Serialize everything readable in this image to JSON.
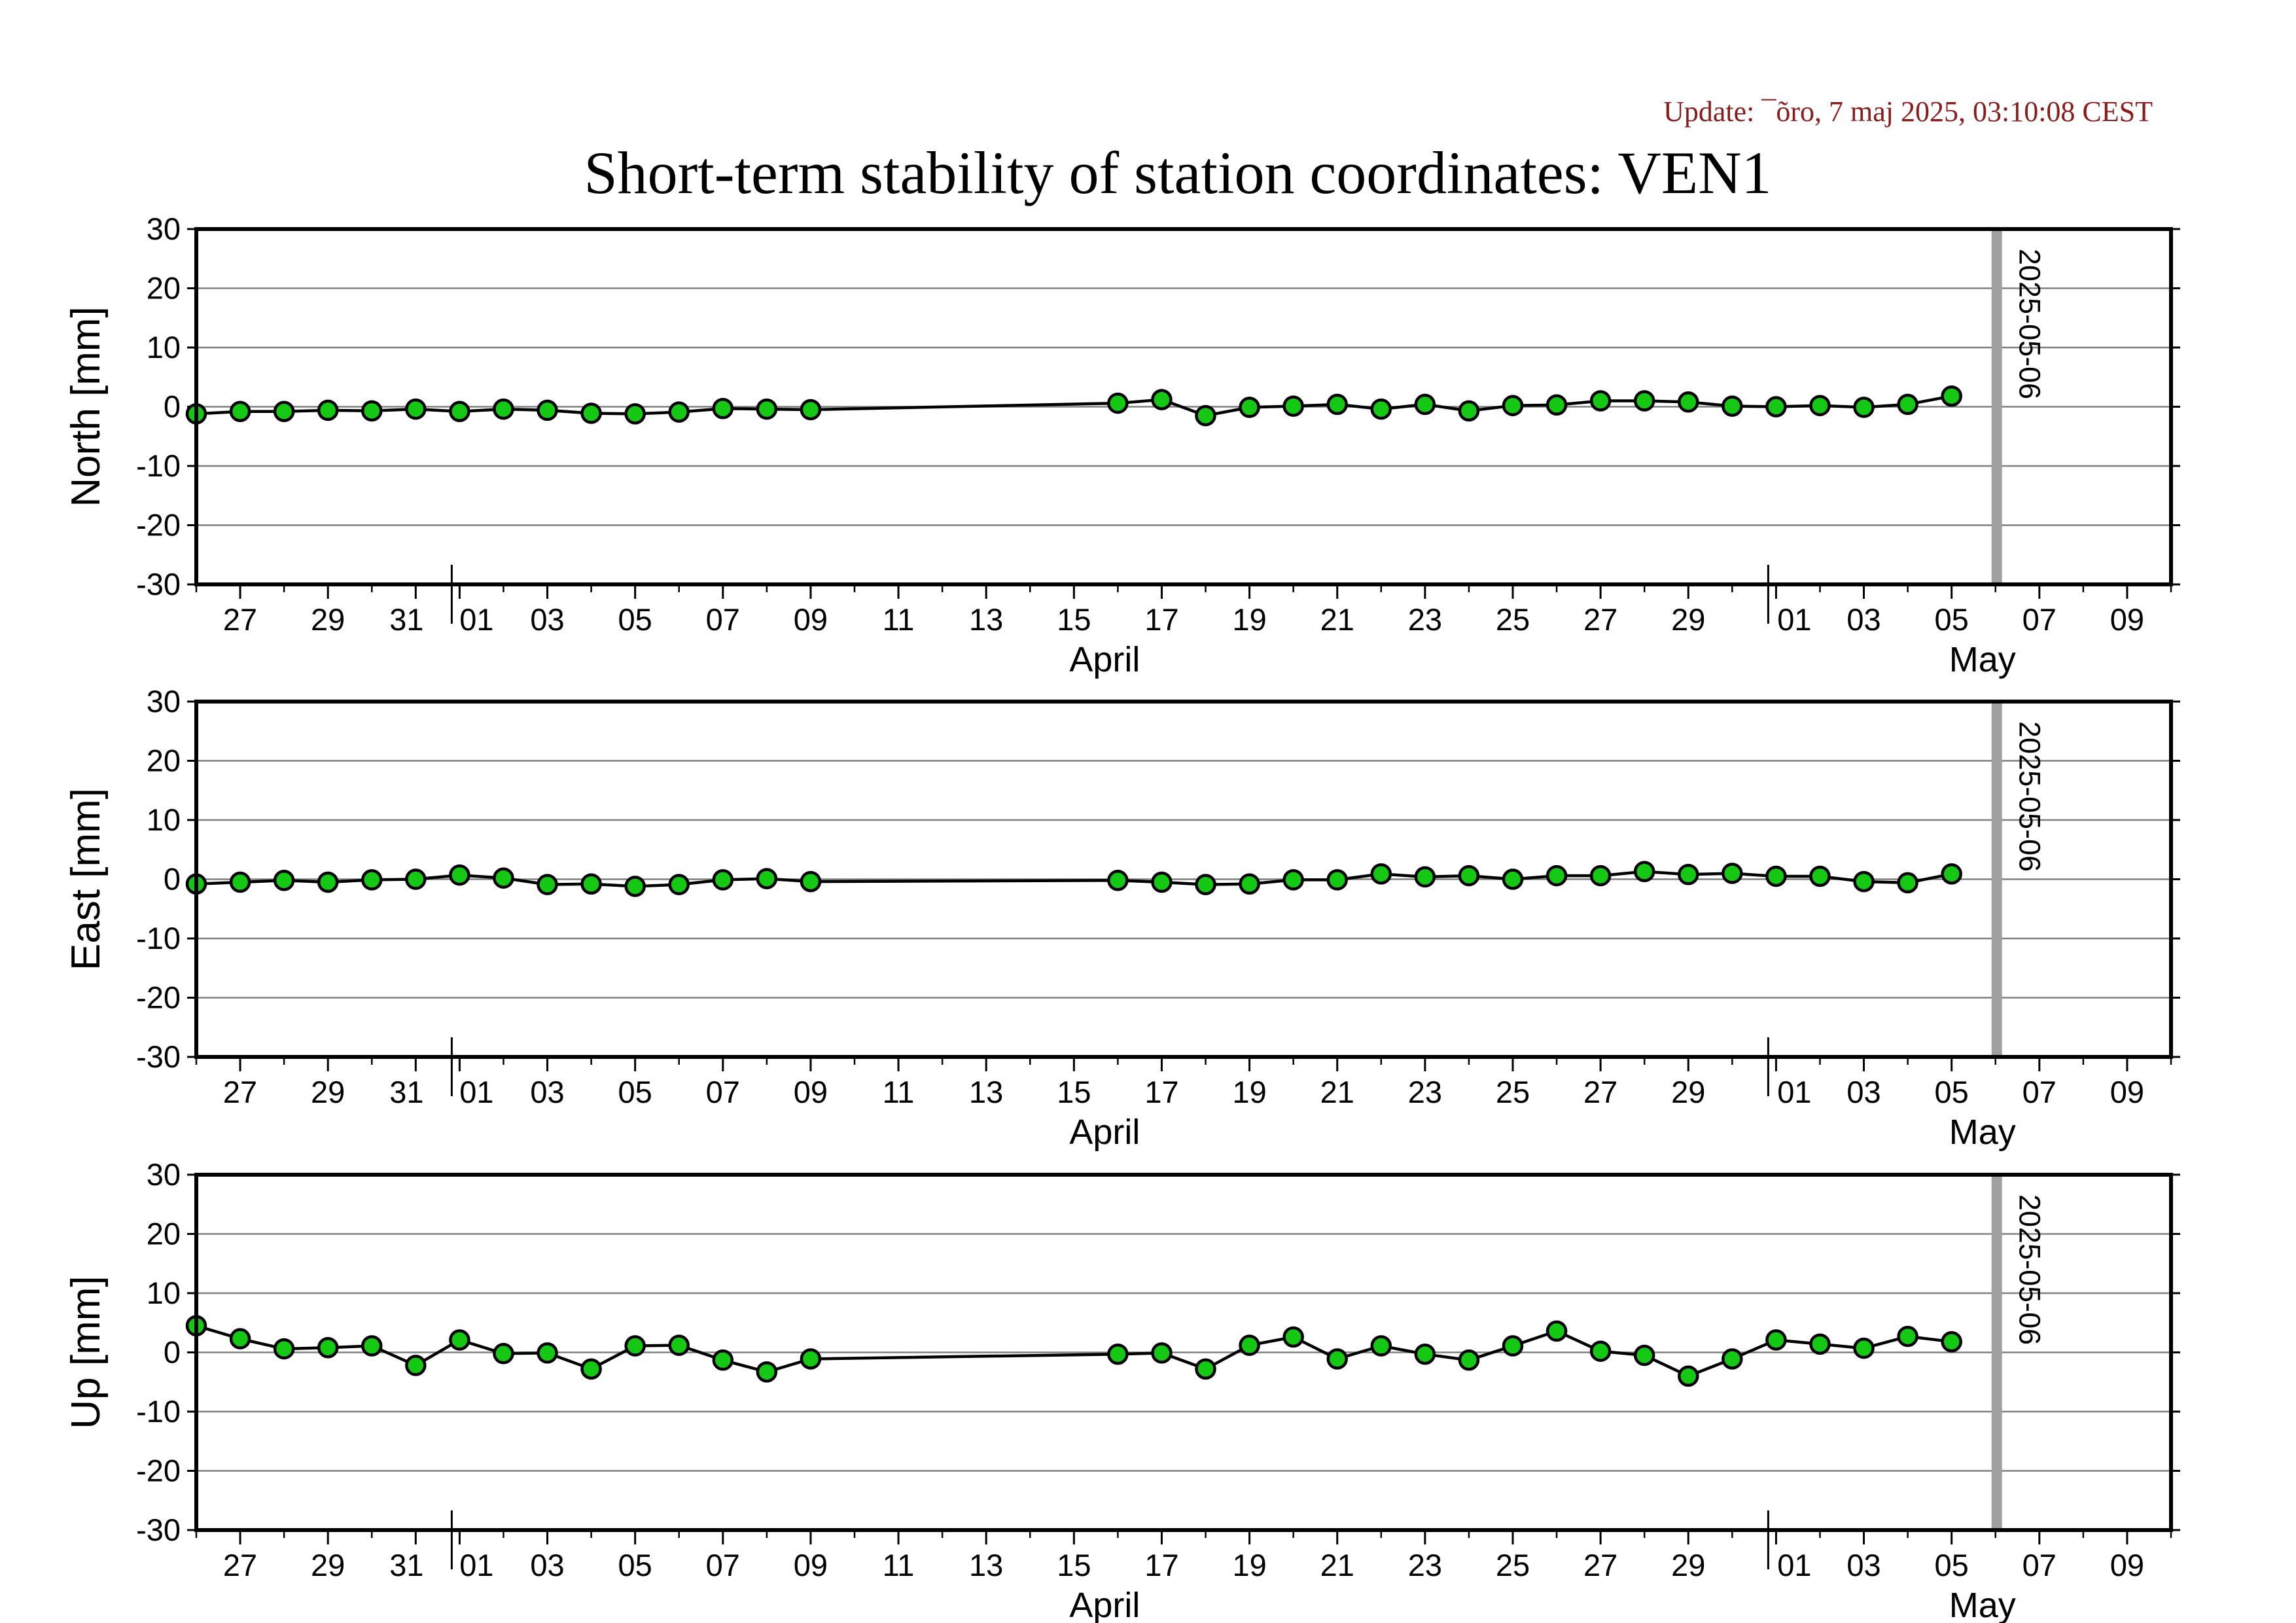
{
  "update_text": "Update: ¯õro, 7 maj 2025, 03:10:08 CEST",
  "title": "Short-term stability of station coordinates: VEN1",
  "colors": {
    "point_fill": "#14c814",
    "point_stroke": "#000000",
    "line": "#000000",
    "grid": "#808080",
    "marker": "#a0a0a0",
    "update": "#8b1a1a"
  },
  "chart_data": [
    {
      "type": "line",
      "ylabel": "North [mm]",
      "ylim": [
        -30,
        30
      ],
      "yticks": [
        30,
        20,
        10,
        0,
        -10,
        -20,
        -30
      ],
      "grid": true,
      "xlim": [
        "2025-03-26",
        "2025-05-10"
      ],
      "x_tick_labels": [
        "27",
        "29",
        "31",
        "01",
        "03",
        "05",
        "07",
        "09",
        "11",
        "13",
        "15",
        "17",
        "19",
        "21",
        "23",
        "25",
        "27",
        "29",
        "01",
        "03",
        "05",
        "07",
        "09"
      ],
      "months": [
        "April",
        "May"
      ],
      "marker": {
        "date": "2025-05-06",
        "label": "2025-05-06"
      },
      "series": [
        {
          "x": [
            "2025-03-26",
            "2025-03-27",
            "2025-03-28",
            "2025-03-29",
            "2025-03-30",
            "2025-03-31",
            "2025-04-01",
            "2025-04-02",
            "2025-04-03",
            "2025-04-04",
            "2025-04-05",
            "2025-04-06",
            "2025-04-07",
            "2025-04-08",
            "2025-04-09",
            "2025-04-16",
            "2025-04-17",
            "2025-04-18",
            "2025-04-19",
            "2025-04-20",
            "2025-04-21",
            "2025-04-22",
            "2025-04-23",
            "2025-04-24",
            "2025-04-25",
            "2025-04-26",
            "2025-04-27",
            "2025-04-28",
            "2025-04-29",
            "2025-04-30",
            "2025-05-01",
            "2025-05-02",
            "2025-05-03",
            "2025-05-04",
            "2025-05-05"
          ],
          "values": [
            -1.2,
            -0.8,
            -0.8,
            -0.6,
            -0.7,
            -0.4,
            -0.8,
            -0.4,
            -0.6,
            -1.1,
            -1.2,
            -0.9,
            -0.3,
            -0.4,
            -0.5,
            0.6,
            1.2,
            -1.5,
            -0.1,
            0.1,
            0.4,
            -0.4,
            0.4,
            -0.7,
            0.2,
            0.3,
            1.0,
            1.0,
            0.8,
            0.1,
            0.0,
            0.2,
            -0.1,
            0.4,
            1.8
          ]
        }
      ]
    },
    {
      "type": "line",
      "ylabel": "East [mm]",
      "ylim": [
        -30,
        30
      ],
      "yticks": [
        30,
        20,
        10,
        0,
        -10,
        -20,
        -30
      ],
      "grid": true,
      "xlim": [
        "2025-03-26",
        "2025-05-10"
      ],
      "x_tick_labels": [
        "27",
        "29",
        "31",
        "01",
        "03",
        "05",
        "07",
        "09",
        "11",
        "13",
        "15",
        "17",
        "19",
        "21",
        "23",
        "25",
        "27",
        "29",
        "01",
        "03",
        "05",
        "07",
        "09"
      ],
      "months": [
        "April",
        "May"
      ],
      "marker": {
        "date": "2025-05-06",
        "label": "2025-05-06"
      },
      "series": [
        {
          "x": [
            "2025-03-26",
            "2025-03-27",
            "2025-03-28",
            "2025-03-29",
            "2025-03-30",
            "2025-03-31",
            "2025-04-01",
            "2025-04-02",
            "2025-04-03",
            "2025-04-04",
            "2025-04-05",
            "2025-04-06",
            "2025-04-07",
            "2025-04-08",
            "2025-04-09",
            "2025-04-16",
            "2025-04-17",
            "2025-04-18",
            "2025-04-19",
            "2025-04-20",
            "2025-04-21",
            "2025-04-22",
            "2025-04-23",
            "2025-04-24",
            "2025-04-25",
            "2025-04-26",
            "2025-04-27",
            "2025-04-28",
            "2025-04-29",
            "2025-04-30",
            "2025-05-01",
            "2025-05-02",
            "2025-05-03",
            "2025-05-04",
            "2025-05-05"
          ],
          "values": [
            -0.8,
            -0.5,
            -0.2,
            -0.5,
            -0.1,
            0.0,
            0.7,
            0.2,
            -0.9,
            -0.8,
            -1.2,
            -0.9,
            -0.1,
            0.1,
            -0.4,
            -0.2,
            -0.5,
            -0.9,
            -0.8,
            -0.1,
            -0.1,
            0.9,
            0.4,
            0.6,
            0.0,
            0.6,
            0.6,
            1.3,
            0.8,
            1.0,
            0.5,
            0.5,
            -0.4,
            -0.6,
            0.9
          ]
        }
      ]
    },
    {
      "type": "line",
      "ylabel": "Up [mm]",
      "ylim": [
        -30,
        30
      ],
      "yticks": [
        30,
        20,
        10,
        0,
        -10,
        -20,
        -30
      ],
      "grid": true,
      "xlim": [
        "2025-03-26",
        "2025-05-10"
      ],
      "x_tick_labels": [
        "27",
        "29",
        "31",
        "01",
        "03",
        "05",
        "07",
        "09",
        "11",
        "13",
        "15",
        "17",
        "19",
        "21",
        "23",
        "25",
        "27",
        "29",
        "01",
        "03",
        "05",
        "07",
        "09"
      ],
      "months": [
        "April",
        "May"
      ],
      "marker": {
        "date": "2025-05-06",
        "label": "2025-05-06"
      },
      "series": [
        {
          "x": [
            "2025-03-26",
            "2025-03-27",
            "2025-03-28",
            "2025-03-29",
            "2025-03-30",
            "2025-03-31",
            "2025-04-01",
            "2025-04-02",
            "2025-04-03",
            "2025-04-04",
            "2025-04-05",
            "2025-04-06",
            "2025-04-07",
            "2025-04-08",
            "2025-04-09",
            "2025-04-16",
            "2025-04-17",
            "2025-04-18",
            "2025-04-19",
            "2025-04-20",
            "2025-04-21",
            "2025-04-22",
            "2025-04-23",
            "2025-04-24",
            "2025-04-25",
            "2025-04-26",
            "2025-04-27",
            "2025-04-28",
            "2025-04-29",
            "2025-04-30",
            "2025-05-01",
            "2025-05-02",
            "2025-05-03",
            "2025-05-04",
            "2025-05-05"
          ],
          "values": [
            4.5,
            2.3,
            0.6,
            0.8,
            1.1,
            -2.2,
            2.1,
            -0.2,
            -0.1,
            -2.8,
            1.1,
            1.2,
            -1.3,
            -3.3,
            -1.1,
            -0.3,
            -0.1,
            -2.8,
            1.2,
            2.6,
            -1.1,
            1.1,
            -0.3,
            -1.3,
            1.1,
            3.6,
            0.2,
            -0.5,
            -4.0,
            -1.1,
            2.1,
            1.4,
            0.7,
            2.7,
            1.8
          ]
        }
      ]
    }
  ]
}
